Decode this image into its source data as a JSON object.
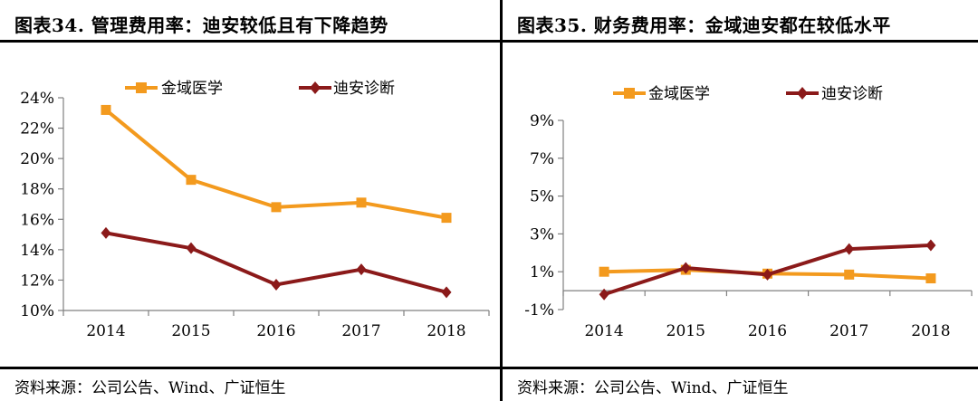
{
  "left": {
    "title": "图表34. 管理费用率：迪安较低且有下降趋势",
    "source": "资料来源：公司公告、Wind、广证恒生"
  },
  "right": {
    "title": "图表35. 财务费用率：金域迪安都在较低水平",
    "source": "资料来源：公司公告、Wind、广证恒生"
  },
  "colors": {
    "series1": "#f39a1e",
    "series2": "#8b1a1a",
    "axis": "#808080"
  },
  "chart_data": [
    {
      "type": "line",
      "title": "图表34. 管理费用率：迪安较低且有下降趋势",
      "categories": [
        "2014",
        "2015",
        "2016",
        "2017",
        "2018"
      ],
      "series": [
        {
          "name": "金域医学",
          "values": [
            23.2,
            18.6,
            16.8,
            17.1,
            16.1
          ],
          "color": "#f39a1e",
          "marker": "square"
        },
        {
          "name": "迪安诊断",
          "values": [
            15.1,
            14.1,
            11.7,
            12.7,
            11.2
          ],
          "color": "#8b1a1a",
          "marker": "diamond"
        }
      ],
      "ylim": [
        10,
        24
      ],
      "yticks": [
        10,
        12,
        14,
        16,
        18,
        20,
        22,
        24
      ],
      "ytick_labels": [
        "10%",
        "12%",
        "14%",
        "16%",
        "18%",
        "20%",
        "22%",
        "24%"
      ],
      "xlabel": "",
      "ylabel": "",
      "grid": false,
      "legend_position": "top"
    },
    {
      "type": "line",
      "title": "图表35. 财务费用率：金域迪安都在较低水平",
      "categories": [
        "2014",
        "2015",
        "2016",
        "2017",
        "2018"
      ],
      "series": [
        {
          "name": "金域医学",
          "values": [
            1.0,
            1.1,
            0.9,
            0.85,
            0.65
          ],
          "color": "#f39a1e",
          "marker": "square"
        },
        {
          "name": "迪安诊断",
          "values": [
            -0.2,
            1.2,
            0.85,
            2.2,
            2.4
          ],
          "color": "#8b1a1a",
          "marker": "diamond"
        }
      ],
      "ylim": [
        -1,
        9
      ],
      "yticks": [
        -1,
        1,
        3,
        5,
        7,
        9
      ],
      "ytick_labels": [
        "-1%",
        "1%",
        "3%",
        "5%",
        "7%",
        "9%"
      ],
      "xlabel": "",
      "ylabel": "",
      "grid": false,
      "legend_position": "top"
    }
  ]
}
